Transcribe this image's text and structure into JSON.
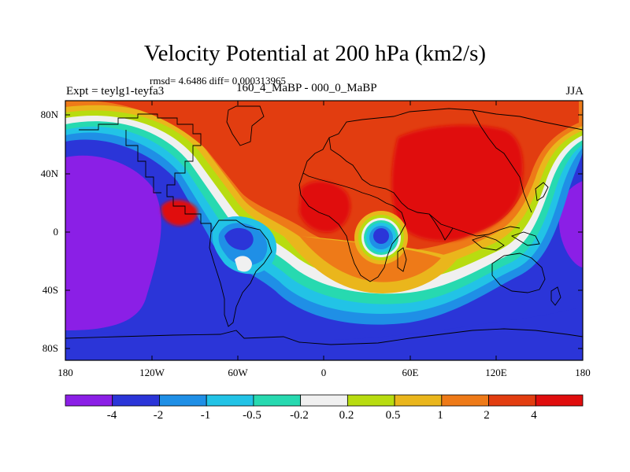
{
  "title": "Velocity Potential at 200 hPa (km2/s)",
  "stats": "rmsd= 4.6486 diff= 0.000313965",
  "left_label": "Expt = teylg1-teyfa3",
  "center_label": "160_4_MaBP - 000_0_MaBP",
  "right_label": "JJA",
  "lat_labels": [
    "80N",
    "40N",
    "0",
    "40S",
    "80S"
  ],
  "lon_labels": [
    "180",
    "120W",
    "60W",
    "0",
    "60E",
    "120E",
    "180"
  ],
  "colorbar": {
    "levels": [
      "-4",
      "-2",
      "-1",
      "-0.5",
      "-0.2",
      "0.2",
      "0.5",
      "1",
      "2",
      "4"
    ],
    "colors": [
      "#8b1fe6",
      "#2b35d8",
      "#1f8fe6",
      "#22c3e6",
      "#27d9b0",
      "#f0f0f0",
      "#b8dc10",
      "#eab61c",
      "#ee7a18",
      "#e23d10",
      "#e00d0d"
    ]
  }
}
